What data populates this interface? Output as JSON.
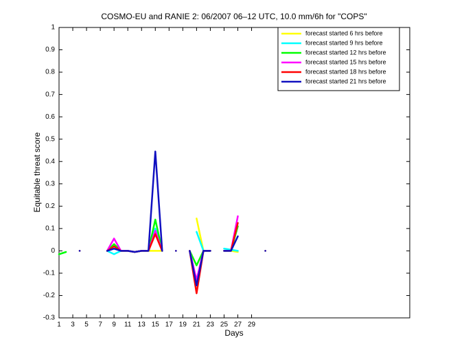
{
  "chart_data": {
    "type": "line",
    "title": "COSMO-EU and RANIE 2: 06/2007 06–12 UTC, 10.0 mm/6h for \"COPS\"",
    "x_label": "Days",
    "y_label": "Equitable threat score",
    "x": [
      1,
      2,
      3,
      4,
      5,
      6,
      7,
      8,
      9,
      10,
      11,
      12,
      13,
      14,
      15,
      16,
      17,
      18,
      19,
      20,
      21,
      22,
      23,
      24,
      25,
      26,
      27,
      28,
      29,
      30,
      31
    ],
    "xlim": [
      1,
      52
    ],
    "ylim": [
      -0.3,
      1
    ],
    "xticks": [
      1,
      3,
      5,
      7,
      9,
      11,
      13,
      15,
      17,
      19,
      21,
      23,
      25,
      27,
      29
    ],
    "yticks": [
      -0.3,
      -0.2,
      -0.1,
      0,
      0.1,
      0.2,
      0.3,
      0.4,
      0.5,
      0.6,
      0.7,
      0.8,
      0.9,
      1
    ],
    "legend_position": "upper-right",
    "series": [
      {
        "name": "forecast started 6 hrs before",
        "color": "#ffff00",
        "values": [
          -0.015,
          -0.005,
          null,
          0,
          null,
          null,
          null,
          0,
          0.03,
          0,
          0,
          -0.005,
          0,
          0,
          0,
          0,
          null,
          0,
          null,
          null,
          0.145,
          0,
          0,
          null,
          0,
          0,
          -0.005,
          null,
          null,
          null,
          0
        ]
      },
      {
        "name": "forecast started 9 hrs before",
        "color": "#00ffff",
        "values": [
          -0.015,
          -0.005,
          null,
          0,
          null,
          null,
          null,
          0,
          -0.015,
          0,
          0,
          -0.005,
          0,
          0,
          0.1,
          0,
          null,
          0,
          null,
          null,
          0.085,
          0,
          0,
          null,
          0.01,
          0.005,
          0,
          null,
          null,
          null,
          0
        ]
      },
      {
        "name": "forecast started 12 hrs before",
        "color": "#00ff00",
        "values": [
          -0.015,
          -0.005,
          null,
          0,
          null,
          null,
          null,
          0,
          0.03,
          0,
          0,
          -0.005,
          0,
          0,
          0.14,
          0,
          null,
          0,
          null,
          0,
          -0.065,
          0,
          0,
          null,
          0,
          0,
          0.11,
          null,
          null,
          null,
          0
        ]
      },
      {
        "name": "forecast started 15 hrs before",
        "color": "#ff00ff",
        "values": [
          null,
          null,
          null,
          0,
          null,
          null,
          null,
          0,
          0.055,
          0,
          0,
          -0.005,
          0,
          0,
          0.09,
          0,
          null,
          0,
          null,
          0,
          -0.13,
          0,
          0,
          null,
          0,
          0,
          0.155,
          null,
          null,
          null,
          0
        ]
      },
      {
        "name": "forecast started 18 hrs before",
        "color": "#ff0000",
        "values": [
          null,
          null,
          null,
          0,
          null,
          null,
          null,
          0,
          0.02,
          0,
          0,
          -0.005,
          0,
          0,
          0.075,
          0,
          null,
          0,
          null,
          0,
          -0.19,
          0,
          0,
          null,
          0,
          0,
          0.125,
          null,
          null,
          null,
          0
        ]
      },
      {
        "name": "forecast started 21 hrs before",
        "color": "#1010c0",
        "values": [
          null,
          null,
          null,
          0,
          null,
          null,
          null,
          0,
          0.01,
          0,
          0,
          -0.005,
          0,
          0,
          0.445,
          0,
          null,
          0,
          null,
          0,
          -0.155,
          0,
          0,
          null,
          0,
          0,
          0.065,
          null,
          null,
          null,
          0
        ]
      }
    ]
  }
}
